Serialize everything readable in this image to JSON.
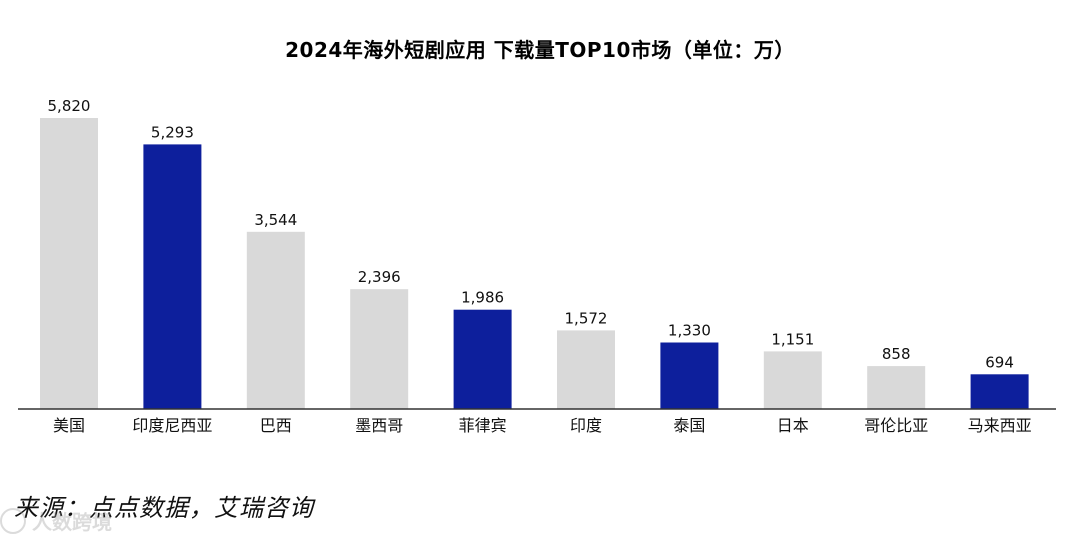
{
  "chart_data": {
    "type": "bar",
    "title": "2024年海外短剧应用 下载量TOP10市场（单位：万）",
    "categories": [
      "美国",
      "印度尼西亚",
      "巴西",
      "墨西哥",
      "菲律宾",
      "印度",
      "泰国",
      "日本",
      "哥伦比亚",
      "马来西亚"
    ],
    "values": [
      5820,
      5293,
      3544,
      2396,
      1986,
      1572,
      1330,
      1151,
      858,
      694
    ],
    "value_labels": [
      "5,820",
      "5,293",
      "3,544",
      "2,396",
      "1,986",
      "1,572",
      "1,330",
      "1,151",
      "858",
      "694"
    ],
    "highlighted": [
      false,
      true,
      false,
      false,
      true,
      false,
      true,
      false,
      false,
      true
    ],
    "colors": {
      "bar_default": "#d9d9d9",
      "bar_highlight": "#0d1f9c",
      "axis": "#333333",
      "text": "#111111"
    },
    "ylim": [
      0,
      5820
    ],
    "grid": false,
    "xlabel": "",
    "ylabel": ""
  },
  "source": "来源：点点数据，艾瑞咨询",
  "watermark": {
    "text": "人数跨境",
    "icon": "circle-logo-icon"
  }
}
